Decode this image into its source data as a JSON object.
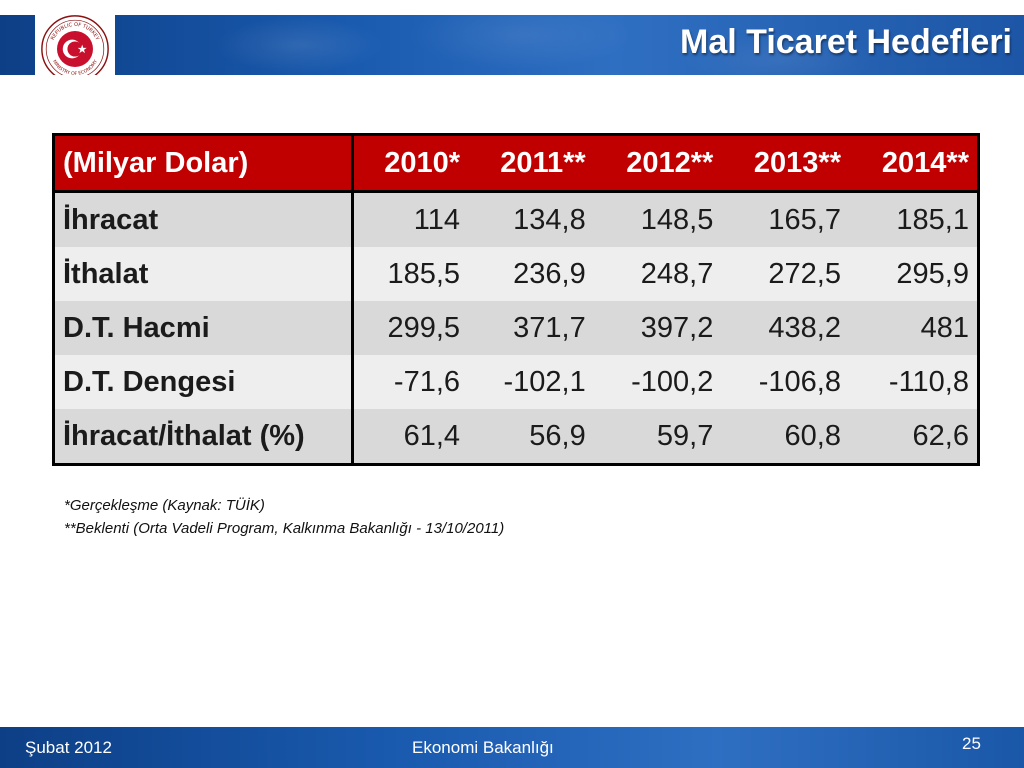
{
  "header": {
    "title": "Mal Ticaret Hedefleri",
    "logo_icon": "ministry-of-economy-seal",
    "logo_text_top": "REPUBLIC OF TURKEY",
    "logo_text_bottom": "MINISTRY OF ECONOMY"
  },
  "table": {
    "unit_header": "(Milyar Dolar)",
    "years": [
      "2010*",
      "2011**",
      "2012**",
      "2013**",
      "2014**"
    ],
    "rows": [
      {
        "label": "İhracat",
        "values": [
          "114",
          "134,8",
          "148,5",
          "165,7",
          "185,1"
        ]
      },
      {
        "label": "İthalat",
        "values": [
          "185,5",
          "236,9",
          "248,7",
          "272,5",
          "295,9"
        ]
      },
      {
        "label": "D.T. Hacmi",
        "values": [
          "299,5",
          "371,7",
          "397,2",
          "438,2",
          "481"
        ]
      },
      {
        "label": "D.T. Dengesi",
        "values": [
          "-71,6",
          "-102,1",
          "-100,2",
          "-106,8",
          "-110,8"
        ]
      },
      {
        "label": "İhracat/İthalat (%)",
        "values": [
          "61,4",
          "56,9",
          "59,7",
          "60,8",
          "62,6"
        ]
      }
    ]
  },
  "notes": {
    "note1": "*Gerçekleşme (Kaynak: TÜİK)",
    "note2": "**Beklenti (Orta Vadeli Program, Kalkınma Bakanlığı - 13/10/2011)"
  },
  "footer": {
    "date": "Şubat 2012",
    "org": "Ekonomi Bakanlığı",
    "page_number": "25"
  },
  "colors": {
    "header_blue": "#1a5bb0",
    "table_header_red": "#c00000",
    "row_dark": "#d9d9d9",
    "row_light": "#eeeeee"
  }
}
